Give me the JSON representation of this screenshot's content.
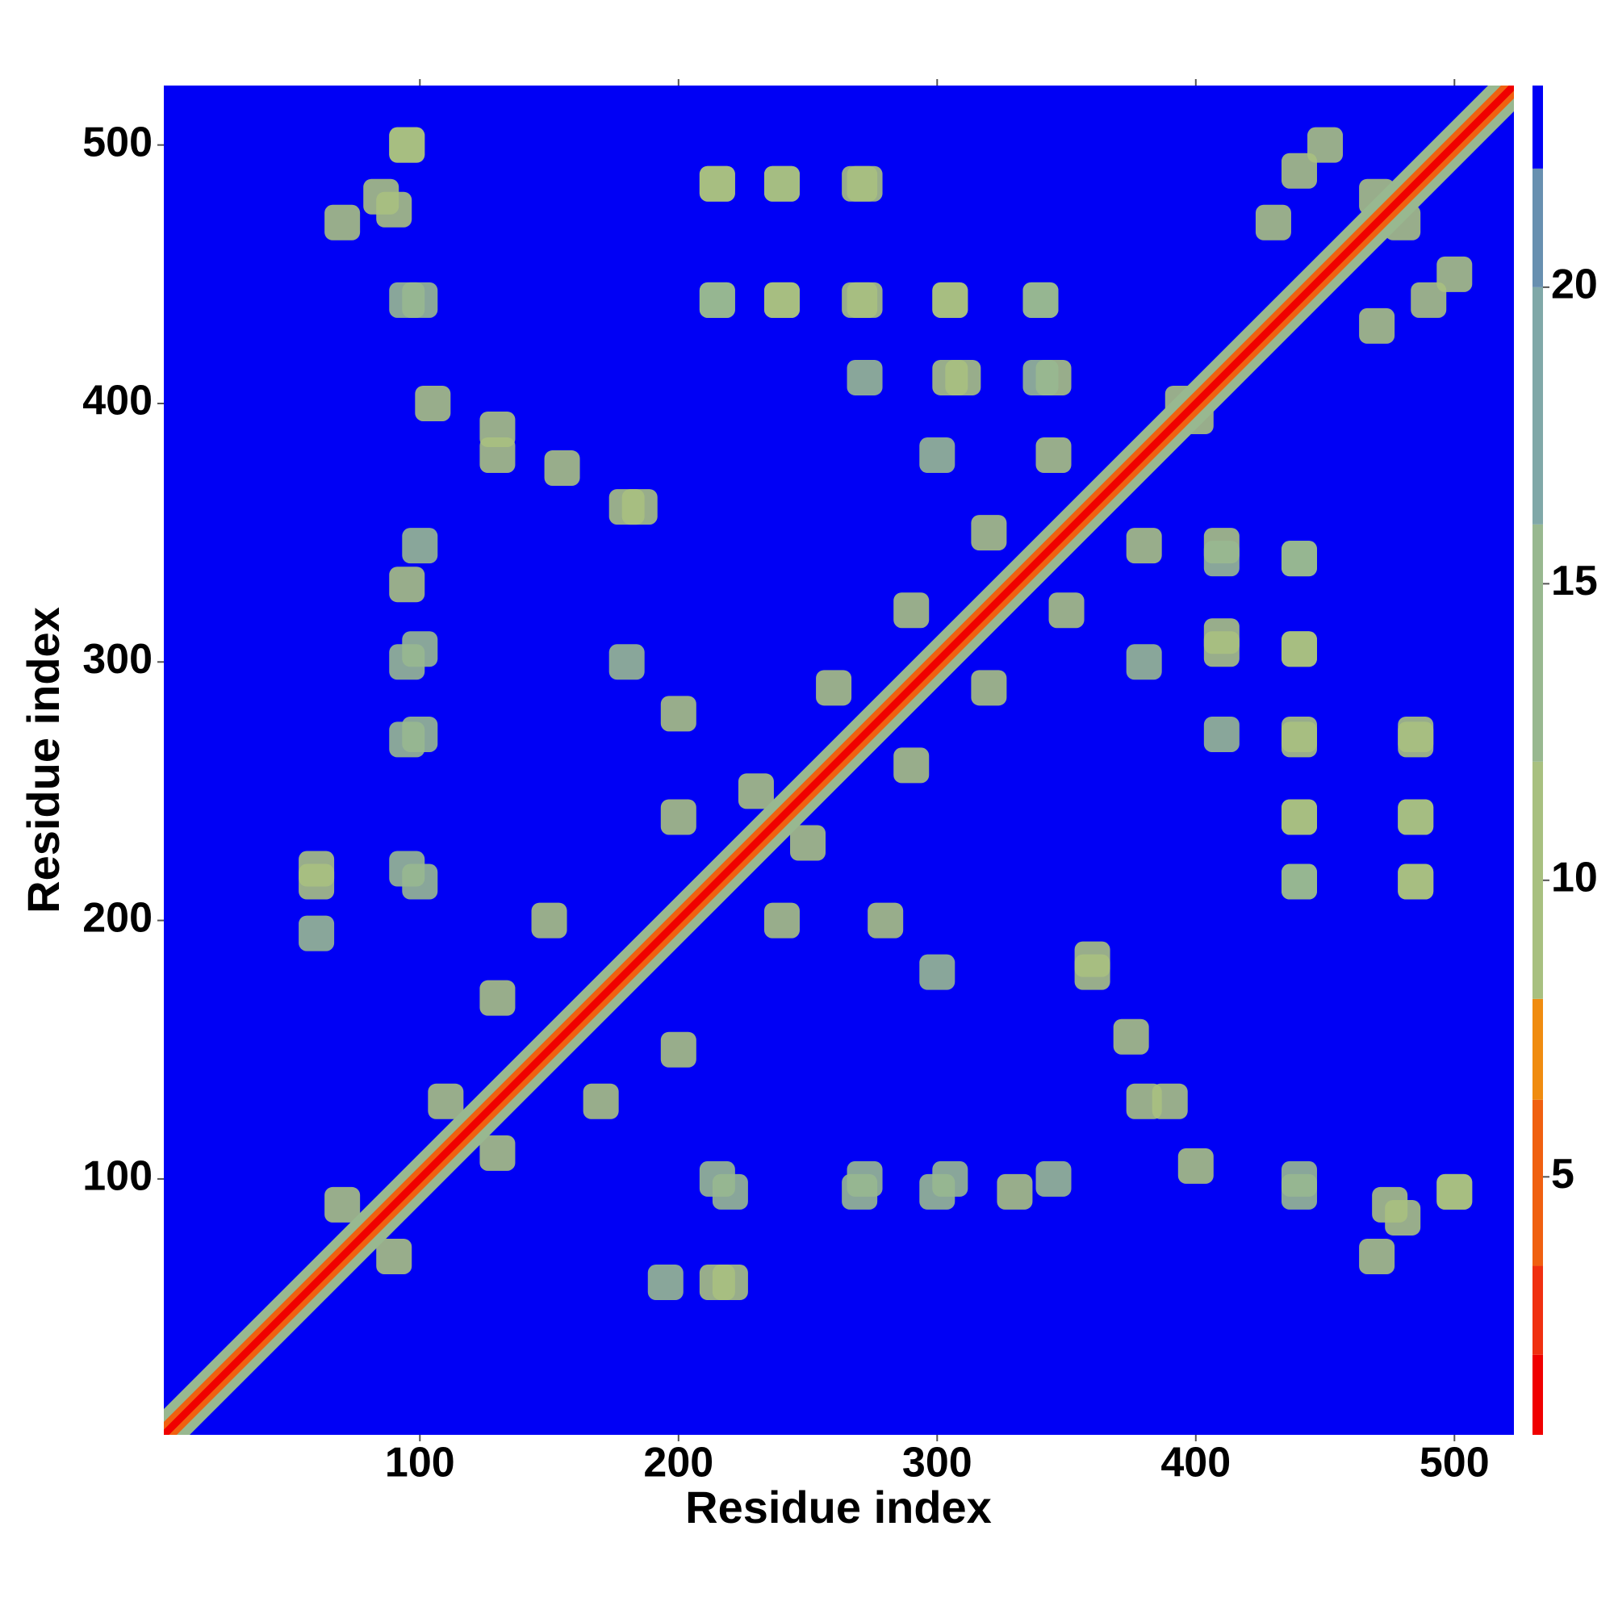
{
  "chart_data": {
    "type": "heatmap",
    "x_label": "Residue index",
    "y_label": "Residue index",
    "xlim": [
      1,
      523
    ],
    "ylim": [
      1,
      523
    ],
    "xticks": [
      100,
      200,
      300,
      400,
      500
    ],
    "yticks": [
      100,
      200,
      300,
      400,
      500
    ],
    "background": {
      "value": 23,
      "color": "#0000f5"
    },
    "colorbar": {
      "lim": [
        0.65,
        23.4
      ],
      "ticks": [
        5,
        10,
        15,
        20
      ],
      "levels": [
        {
          "from": 0.65,
          "to": 2,
          "color": "#f00000"
        },
        {
          "from": 2,
          "to": 3.5,
          "color": "#f03010"
        },
        {
          "from": 3.5,
          "to": 6.3,
          "color": "#f06010"
        },
        {
          "from": 6.3,
          "to": 8,
          "color": "#f08c10"
        },
        {
          "from": 8,
          "to": 12,
          "color": "#a8c080"
        },
        {
          "from": 12,
          "to": 16,
          "color": "#98b890"
        },
        {
          "from": 16,
          "to": 20,
          "color": "#80a8a8"
        },
        {
          "from": 20,
          "to": 22,
          "color": "#6890b0"
        },
        {
          "from": 22,
          "to": 23.4,
          "color": "#0000f5"
        }
      ]
    },
    "diagonal_bands": [
      {
        "offset": 10,
        "value": 13
      },
      {
        "offset": 5,
        "value": 5
      },
      {
        "offset": 2,
        "value": 1
      }
    ],
    "contacts": [
      {
        "x": 95,
        "y": 500,
        "value": 12
      },
      {
        "x": 70,
        "y": 470,
        "value": 12
      },
      {
        "x": 90,
        "y": 475,
        "value": 10
      },
      {
        "x": 100,
        "y": 440,
        "value": 14
      },
      {
        "x": 105,
        "y": 400,
        "value": 12
      },
      {
        "x": 130,
        "y": 390,
        "value": 12
      },
      {
        "x": 155,
        "y": 375,
        "value": 11
      },
      {
        "x": 185,
        "y": 360,
        "value": 10
      },
      {
        "x": 100,
        "y": 345,
        "value": 13
      },
      {
        "x": 100,
        "y": 305,
        "value": 14
      },
      {
        "x": 100,
        "y": 272,
        "value": 14
      },
      {
        "x": 60,
        "y": 220,
        "value": 12
      },
      {
        "x": 60,
        "y": 195,
        "value": 15
      },
      {
        "x": 100,
        "y": 215,
        "value": 14
      },
      {
        "x": 215,
        "y": 485,
        "value": 12
      },
      {
        "x": 240,
        "y": 485,
        "value": 13
      },
      {
        "x": 270,
        "y": 485,
        "value": 12
      },
      {
        "x": 215,
        "y": 440,
        "value": 13
      },
      {
        "x": 240,
        "y": 440,
        "value": 12
      },
      {
        "x": 270,
        "y": 440,
        "value": 11
      },
      {
        "x": 305,
        "y": 440,
        "value": 12
      },
      {
        "x": 340,
        "y": 440,
        "value": 14
      },
      {
        "x": 310,
        "y": 410,
        "value": 12
      },
      {
        "x": 345,
        "y": 410,
        "value": 12
      },
      {
        "x": 300,
        "y": 380,
        "value": 13
      },
      {
        "x": 345,
        "y": 380,
        "value": 12
      },
      {
        "x": 395,
        "y": 400,
        "value": 11
      },
      {
        "x": 440,
        "y": 340,
        "value": 14
      },
      {
        "x": 440,
        "y": 305,
        "value": 12
      },
      {
        "x": 440,
        "y": 272,
        "value": 11
      },
      {
        "x": 440,
        "y": 240,
        "value": 12
      },
      {
        "x": 440,
        "y": 215,
        "value": 13
      },
      {
        "x": 485,
        "y": 272,
        "value": 12
      },
      {
        "x": 485,
        "y": 240,
        "value": 12
      },
      {
        "x": 485,
        "y": 215,
        "value": 11
      },
      {
        "x": 410,
        "y": 340,
        "value": 13
      },
      {
        "x": 410,
        "y": 305,
        "value": 12
      },
      {
        "x": 410,
        "y": 272,
        "value": 13
      },
      {
        "x": 330,
        "y": 95,
        "value": 12
      },
      {
        "x": 300,
        "y": 95,
        "value": 13
      },
      {
        "x": 270,
        "y": 95,
        "value": 14
      },
      {
        "x": 220,
        "y": 95,
        "value": 15
      },
      {
        "x": 215,
        "y": 60,
        "value": 12
      },
      {
        "x": 480,
        "y": 85,
        "value": 11
      },
      {
        "x": 500,
        "y": 95,
        "value": 12
      },
      {
        "x": 440,
        "y": 95,
        "value": 13
      },
      {
        "x": 360,
        "y": 180,
        "value": 11
      },
      {
        "x": 380,
        "y": 130,
        "value": 12
      },
      {
        "x": 300,
        "y": 180,
        "value": 13
      },
      {
        "x": 230,
        "y": 250,
        "value": 11
      },
      {
        "x": 260,
        "y": 290,
        "value": 11
      },
      {
        "x": 290,
        "y": 320,
        "value": 12
      },
      {
        "x": 320,
        "y": 350,
        "value": 11
      },
      {
        "x": 480,
        "y": 470,
        "value": 10
      },
      {
        "x": 450,
        "y": 500,
        "value": 11
      },
      {
        "x": 430,
        "y": 470,
        "value": 11
      },
      {
        "x": 490,
        "y": 440,
        "value": 12
      },
      {
        "x": 200,
        "y": 150,
        "value": 11
      },
      {
        "x": 170,
        "y": 130,
        "value": 12
      },
      {
        "x": 130,
        "y": 110,
        "value": 11
      },
      {
        "x": 90,
        "y": 70,
        "value": 12
      },
      {
        "x": 200,
        "y": 280,
        "value": 12
      },
      {
        "x": 240,
        "y": 200,
        "value": 11
      }
    ]
  }
}
